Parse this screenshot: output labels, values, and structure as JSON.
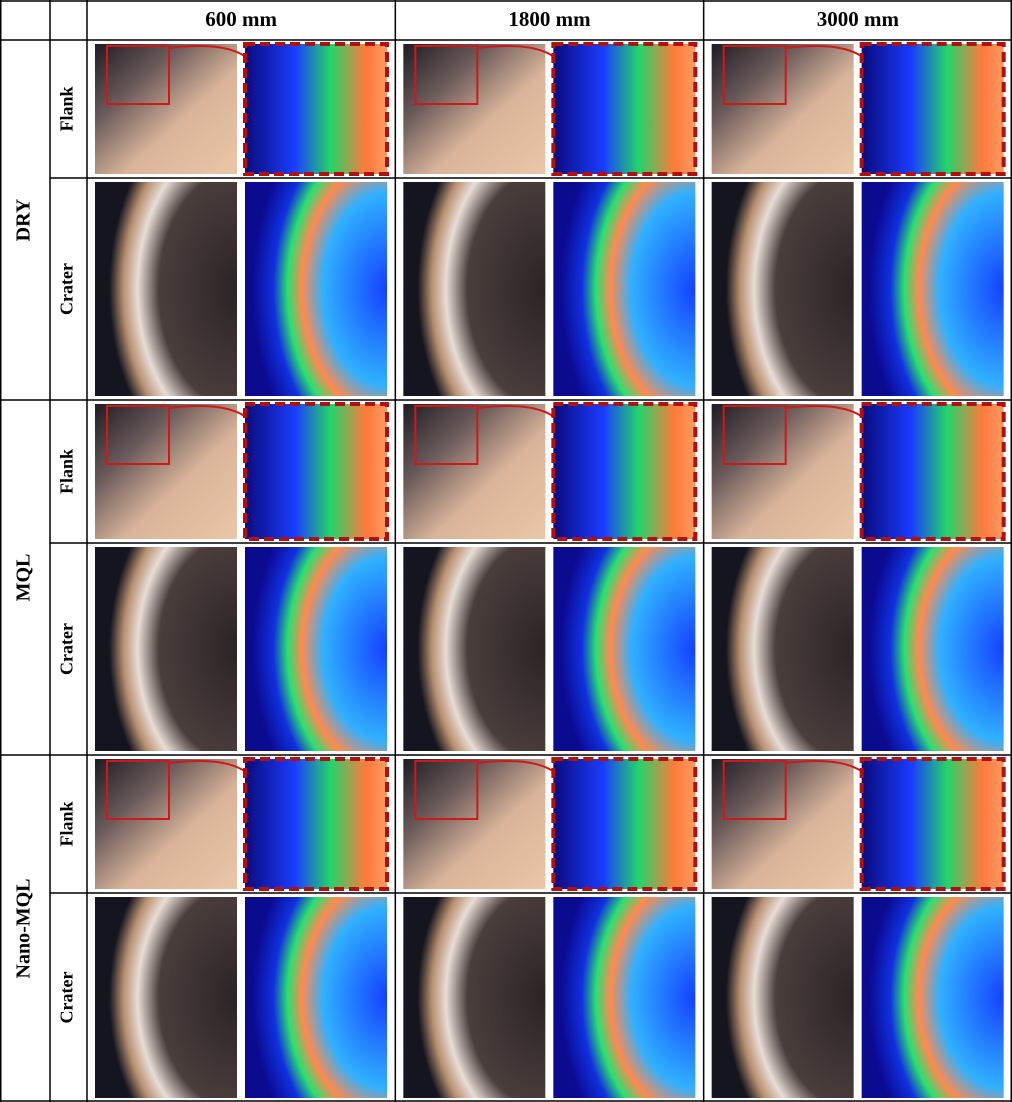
{
  "header": {
    "columns": [
      "600 mm",
      "1800 mm",
      "3000 mm"
    ]
  },
  "groups": [
    {
      "label": "DRY",
      "rows": [
        "Flank",
        "Crater"
      ]
    },
    {
      "label": "MQL",
      "rows": [
        "Flank",
        "Crater"
      ]
    },
    {
      "label": "Nano-MQL",
      "rows": [
        "Flank",
        "Crater"
      ]
    }
  ]
}
